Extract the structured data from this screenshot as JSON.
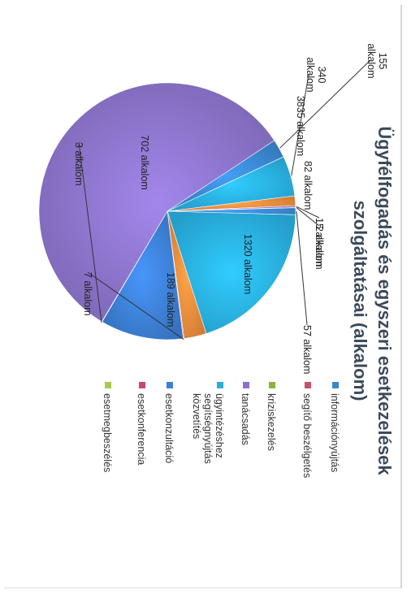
{
  "chart_data": {
    "type": "pie",
    "title": "Ügyfélfogadás és egyszeri esetkezelések szolgáltatásai (alkalom)",
    "title_lines": [
      "Ügyfélfogadás és egyszeri esetkezelések",
      "szolgáltatásai (alkalom)"
    ],
    "orientation": "rotated 90° clockwise",
    "legend_position": "right",
    "categories": [
      "információnyújtás",
      "segítő beszélgetés",
      "kriziskezelés",
      "tanácsadás",
      "ügyintézéshez segítségnyújtás közvetítés",
      "esetkonzultáció",
      "esetkonferencia",
      "esetmegbeszélés"
    ],
    "legend_lines": [
      [
        "információnyújtás"
      ],
      [
        "segítő beszélgetés"
      ],
      [
        "kriziskezelés"
      ],
      [
        "tanácsadás"
      ],
      [
        "ügyintézéshez",
        "segítségnyújtás",
        "közvetítés"
      ],
      [
        "esetkonzultáció"
      ],
      [
        "esetkonferencia"
      ],
      [
        "esetmegbeszélés"
      ]
    ],
    "colors": [
      "#3a86d0",
      "#c8506a",
      "#86b43c",
      "#8a72c8",
      "#29aee0",
      "#e88a3c",
      "#3c7fd4",
      "#c64a6a",
      "#a6cc4c"
    ],
    "slices": [
      {
        "value": 1320,
        "label": "1320 alkalom",
        "color": "#29aee0"
      },
      {
        "value": 189,
        "label": "189 alkalom",
        "color": "#e88a3c"
      },
      {
        "value": 7,
        "label": "7 alkalom",
        "color": "#c64a6a"
      },
      {
        "value": 702,
        "label": "702 alkalom",
        "color": "#3c7fd4"
      },
      {
        "value": 3,
        "label": "3 alkalom",
        "color": "#a6cc4c"
      },
      {
        "value": 3835,
        "label": "3835 alkalom",
        "color": "#8a72c8"
      },
      {
        "value": 155,
        "label": "155 alkalom",
        "color": "#3a86d0"
      },
      {
        "value": 340,
        "label": "340 alkalom",
        "color": "#29aee0"
      },
      {
        "value": 82,
        "label": "82 alkalom",
        "color": "#e88a3c"
      },
      {
        "value": 15,
        "label": "15 alkalom",
        "color": "#8a72c8"
      },
      {
        "value": 2,
        "label": "2 alkalom",
        "color": "#c64a6a"
      },
      {
        "value": 57,
        "label": "57 alkalom",
        "color": "#3a86d0"
      }
    ]
  }
}
